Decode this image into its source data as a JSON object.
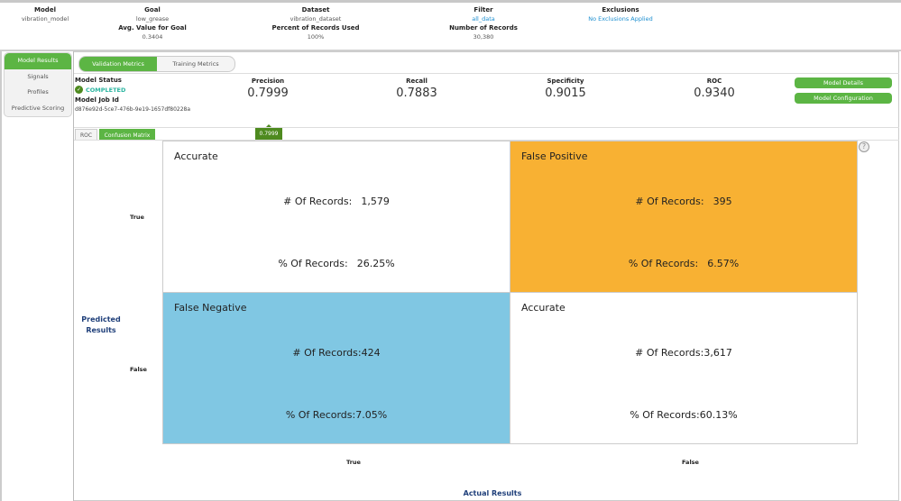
{
  "header": {
    "model": {
      "label": "Model",
      "value": "vibration_model"
    },
    "goal": {
      "label": "Goal",
      "value": "low_grease"
    },
    "avg_goal": {
      "label": "Avg. Value for Goal",
      "value": "0.3404"
    },
    "dataset": {
      "label": "Dataset",
      "value": "vibration_dataset"
    },
    "percent_used": {
      "label": "Percent of Records Used",
      "value": "100%"
    },
    "filter": {
      "label": "Filter",
      "value": "all_data"
    },
    "num_records": {
      "label": "Number of Records",
      "value": "30,380"
    },
    "exclusions": {
      "label": "Exclusions",
      "value": "No Exclusions Applied"
    }
  },
  "sidebar": {
    "items": [
      {
        "label": "Model Results",
        "active": true
      },
      {
        "label": "Signals"
      },
      {
        "label": "Profiles"
      },
      {
        "label": "Predictive Scoring"
      }
    ]
  },
  "tabs": [
    {
      "label": "Validation Metrics",
      "active": true
    },
    {
      "label": "Training Metrics"
    }
  ],
  "status": {
    "label": "Model Status",
    "value": "COMPLETED",
    "job_label": "Model Job Id",
    "job_id": "d876e92d-5ce7-476b-9e19-1657df80228a",
    "icon": "check-circle-icon"
  },
  "metrics": [
    {
      "label": "Precision",
      "value": "0.7999"
    },
    {
      "label": "Recall",
      "value": "0.7883"
    },
    {
      "label": "Specificity",
      "value": "0.9015"
    },
    {
      "label": "ROC",
      "value": "0.9340"
    }
  ],
  "buttons": {
    "details": "Model Details",
    "config": "Model Configuration"
  },
  "subtabs": [
    {
      "label": "ROC"
    },
    {
      "label": "Confusion Matrix",
      "active": true
    }
  ],
  "tooltip": "0.7999",
  "matrix": {
    "predicted_title": "Predicted Results",
    "actual_title": "Actual Results",
    "row_labels": [
      "True",
      "False"
    ],
    "col_labels": [
      "True",
      "False"
    ],
    "records_label": "# Of Records:",
    "pct_label": "% Of Records:",
    "cells": [
      {
        "title": "Accurate",
        "records": "1,579",
        "pct": "26.25%",
        "color": "#ffffff"
      },
      {
        "title": "False Positive",
        "records": "395",
        "pct": "6.57%",
        "color": "#f8b133"
      },
      {
        "title": "False Negative",
        "records": "424",
        "pct": "7.05%",
        "color": "#80c7e3"
      },
      {
        "title": "Accurate",
        "records": "3,617",
        "pct": "60.13%",
        "color": "#ffffff"
      }
    ]
  },
  "colors": {
    "accent": "#5cb544",
    "tooltip": "#4e8a1f",
    "link": "#1e8fd0",
    "axis_title": "#1f3f7a"
  }
}
